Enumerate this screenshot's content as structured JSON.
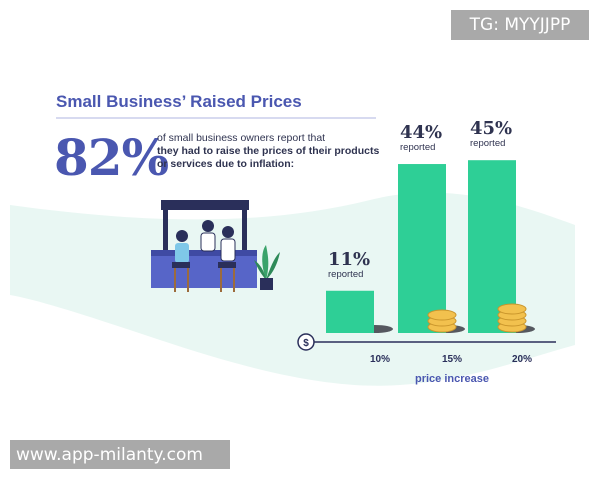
{
  "watermarks": {
    "top": "TG: MYYJJPP",
    "bottom": "www.app-milanty.com"
  },
  "header": {
    "title": "Small Business’ Raised Prices",
    "big_percent": "82%",
    "desc_line1": "of small business owners report that",
    "desc_bold": "they had to raise the prices of their products or services due to inflation:"
  },
  "colors": {
    "accent": "#4a57b0",
    "bar": "#2ecf96",
    "bg_wave": "#e9f7f3",
    "coin": "#f2c14e"
  },
  "chart_data": {
    "type": "bar",
    "categories": [
      "10%",
      "15%",
      "20%"
    ],
    "values": [
      11,
      44,
      45
    ],
    "data_labels": [
      "11%",
      "44%",
      "45%"
    ],
    "label_suffix": "reported",
    "xlabel": "price increase",
    "axis_symbol": "$",
    "ylim": [
      0,
      50
    ]
  }
}
